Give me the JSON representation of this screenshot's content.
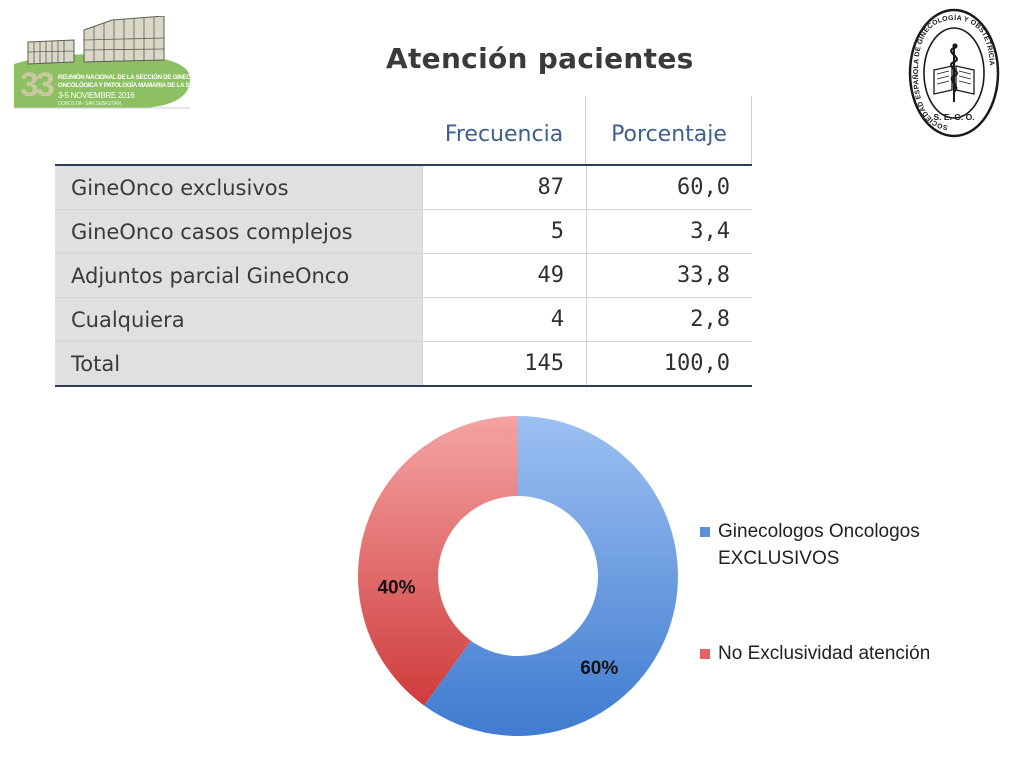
{
  "slide": {
    "title": "Atención pacientes"
  },
  "conference_logo": {
    "number": "33",
    "line1": "REUNIÓN NACIONAL DE LA SECCIÓN DE GINECOLOGÍA",
    "line2": "ONCOLÓGICA Y PATOLOGÍA MAMARIA DE LA SEGO",
    "dates": "3-5 NOVIEMBRE 2016",
    "city": "DONOSTIA - SAN SEBASTIÁN"
  },
  "seal": {
    "ring_text": "SOCIEDAD ESPAÑOLA DE GINECOLOGÍA Y OBSTETRICIA",
    "acronym": "S. E. G. O."
  },
  "table": {
    "headers": [
      "Frecuencia",
      "Porcentaje"
    ],
    "rows": [
      {
        "label": "GineOnco exclusivos",
        "frecuencia": "87",
        "porcentaje": "60,0"
      },
      {
        "label": "GineOnco casos complejos",
        "frecuencia": "5",
        "porcentaje": "3,4"
      },
      {
        "label": "Adjuntos parcial GineOnco",
        "frecuencia": "49",
        "porcentaje": "33,8"
      },
      {
        "label": "Cualquiera",
        "frecuencia": "4",
        "porcentaje": "2,8"
      },
      {
        "label": "Total",
        "frecuencia": "145",
        "porcentaje": "100,0"
      }
    ]
  },
  "chart_data": [
    {
      "type": "table",
      "columns": [
        "",
        "Frecuencia",
        "Porcentaje"
      ],
      "rows": [
        [
          "GineOnco exclusivos",
          87,
          60.0
        ],
        [
          "GineOnco casos complejos",
          5,
          3.4
        ],
        [
          "Adjuntos parcial GineOnco",
          49,
          33.8
        ],
        [
          "Cualquiera",
          4,
          2.8
        ],
        [
          "Total",
          145,
          100.0
        ]
      ]
    },
    {
      "type": "pie",
      "donut": true,
      "categories": [
        "Ginecologos Oncologos EXCLUSIVOS",
        "No Exclusividad atención"
      ],
      "values": [
        60,
        40
      ],
      "labels": [
        "60%",
        "40%"
      ],
      "colors": [
        "#5b8fd9",
        "#e06262"
      ],
      "legend": "right"
    }
  ]
}
